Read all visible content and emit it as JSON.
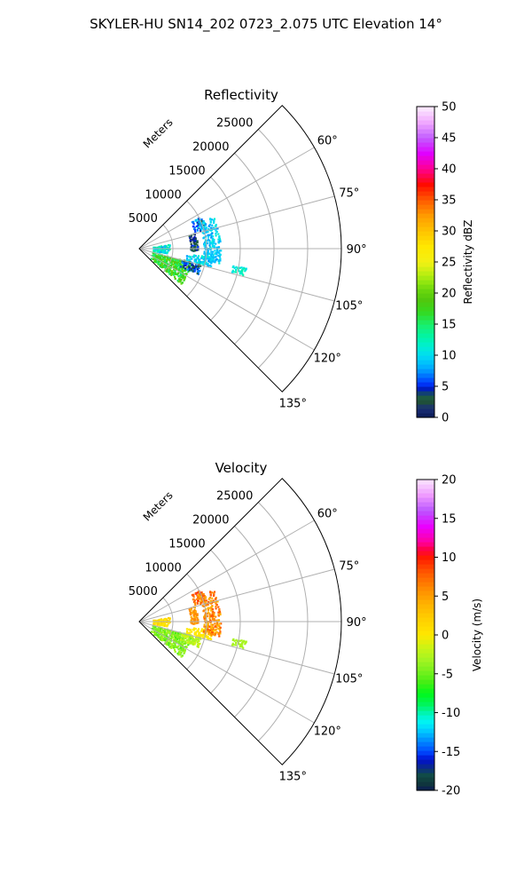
{
  "suptitle": "SKYLER-HU  SN14_202  0723_2.075 UTC Elevation 14°",
  "chart_data": [
    {
      "type": "ppi-sector",
      "title": "Reflectivity",
      "radial_label": "Meters",
      "range_ticks": [
        "5000",
        "10000",
        "15000",
        "20000",
        "25000"
      ],
      "range_values": [
        5000,
        10000,
        15000,
        20000,
        25000
      ],
      "range_max": 30000,
      "azimuth_range": [
        45,
        135
      ],
      "azimuth_ticks": [
        "60°",
        "75°",
        "90°",
        "105°",
        "120°",
        "135°"
      ],
      "azimuth_values": [
        60,
        75,
        90,
        105,
        120,
        135
      ],
      "grid": true,
      "colorbar": {
        "label": "Reflectivity dBZ",
        "min": 0,
        "max": 50,
        "ticks": [
          "0",
          "5",
          "10",
          "15",
          "20",
          "25",
          "30",
          "35",
          "40",
          "45",
          "50"
        ],
        "tick_values": [
          0,
          5,
          10,
          15,
          20,
          25,
          30,
          35,
          40,
          45,
          50
        ]
      },
      "echo_clusters": [
        {
          "azimuth": [
            104,
            130
          ],
          "range": [
            2000,
            8000
          ],
          "value": [
            15,
            22
          ]
        },
        {
          "azimuth": [
            81,
            98
          ],
          "range": [
            2000,
            4500
          ],
          "value": [
            8,
            16
          ]
        },
        {
          "azimuth": [
            62,
            73
          ],
          "range": [
            8500,
            10200
          ],
          "value": [
            4,
            11
          ]
        },
        {
          "azimuth": [
            74,
            92
          ],
          "range": [
            7500,
            8600
          ],
          "value": [
            2,
            6
          ]
        },
        {
          "azimuth": [
            96,
            104
          ],
          "range": [
            7000,
            11000
          ],
          "value": [
            8,
            13
          ]
        },
        {
          "azimuth": [
            104,
            113
          ],
          "range": [
            6500,
            9500
          ],
          "value": [
            3,
            8
          ]
        },
        {
          "azimuth": [
            65,
            100
          ],
          "range": [
            9500,
            12000
          ],
          "value": [
            8,
            12
          ]
        },
        {
          "azimuth": [
            100,
            104
          ],
          "range": [
            14000,
            16000
          ],
          "value": [
            10,
            14
          ]
        }
      ]
    },
    {
      "type": "ppi-sector",
      "title": "Velocity",
      "radial_label": "Meters",
      "range_ticks": [
        "5000",
        "10000",
        "15000",
        "20000",
        "25000"
      ],
      "range_values": [
        5000,
        10000,
        15000,
        20000,
        25000
      ],
      "range_max": 30000,
      "azimuth_range": [
        45,
        135
      ],
      "azimuth_ticks": [
        "60°",
        "75°",
        "90°",
        "105°",
        "120°",
        "135°"
      ],
      "azimuth_values": [
        60,
        75,
        90,
        105,
        120,
        135
      ],
      "grid": true,
      "colorbar": {
        "label": "Velocity (m/s)",
        "min": -20,
        "max": 20,
        "ticks": [
          "-20",
          "-15",
          "-10",
          "-5",
          "0",
          "5",
          "10",
          "15",
          "20"
        ],
        "tick_values": [
          -20,
          -15,
          -10,
          -5,
          0,
          5,
          10,
          15,
          20
        ]
      },
      "echo_clusters": [
        {
          "azimuth": [
            104,
            130
          ],
          "range": [
            2000,
            8000
          ],
          "value": [
            -5,
            -2
          ]
        },
        {
          "azimuth": [
            81,
            98
          ],
          "range": [
            2000,
            4500
          ],
          "value": [
            0,
            4
          ]
        },
        {
          "azimuth": [
            62,
            73
          ],
          "range": [
            8500,
            10200
          ],
          "value": [
            6,
            11
          ]
        },
        {
          "azimuth": [
            74,
            92
          ],
          "range": [
            7500,
            8600
          ],
          "value": [
            5,
            8
          ]
        },
        {
          "azimuth": [
            96,
            104
          ],
          "range": [
            7000,
            11000
          ],
          "value": [
            0,
            2
          ]
        },
        {
          "azimuth": [
            104,
            113
          ],
          "range": [
            6500,
            9500
          ],
          "value": [
            -3,
            0
          ]
        },
        {
          "azimuth": [
            65,
            100
          ],
          "range": [
            9500,
            12000
          ],
          "value": [
            4,
            10
          ]
        },
        {
          "azimuth": [
            100,
            104
          ],
          "range": [
            14000,
            16000
          ],
          "value": [
            -3,
            -2
          ]
        }
      ]
    }
  ]
}
